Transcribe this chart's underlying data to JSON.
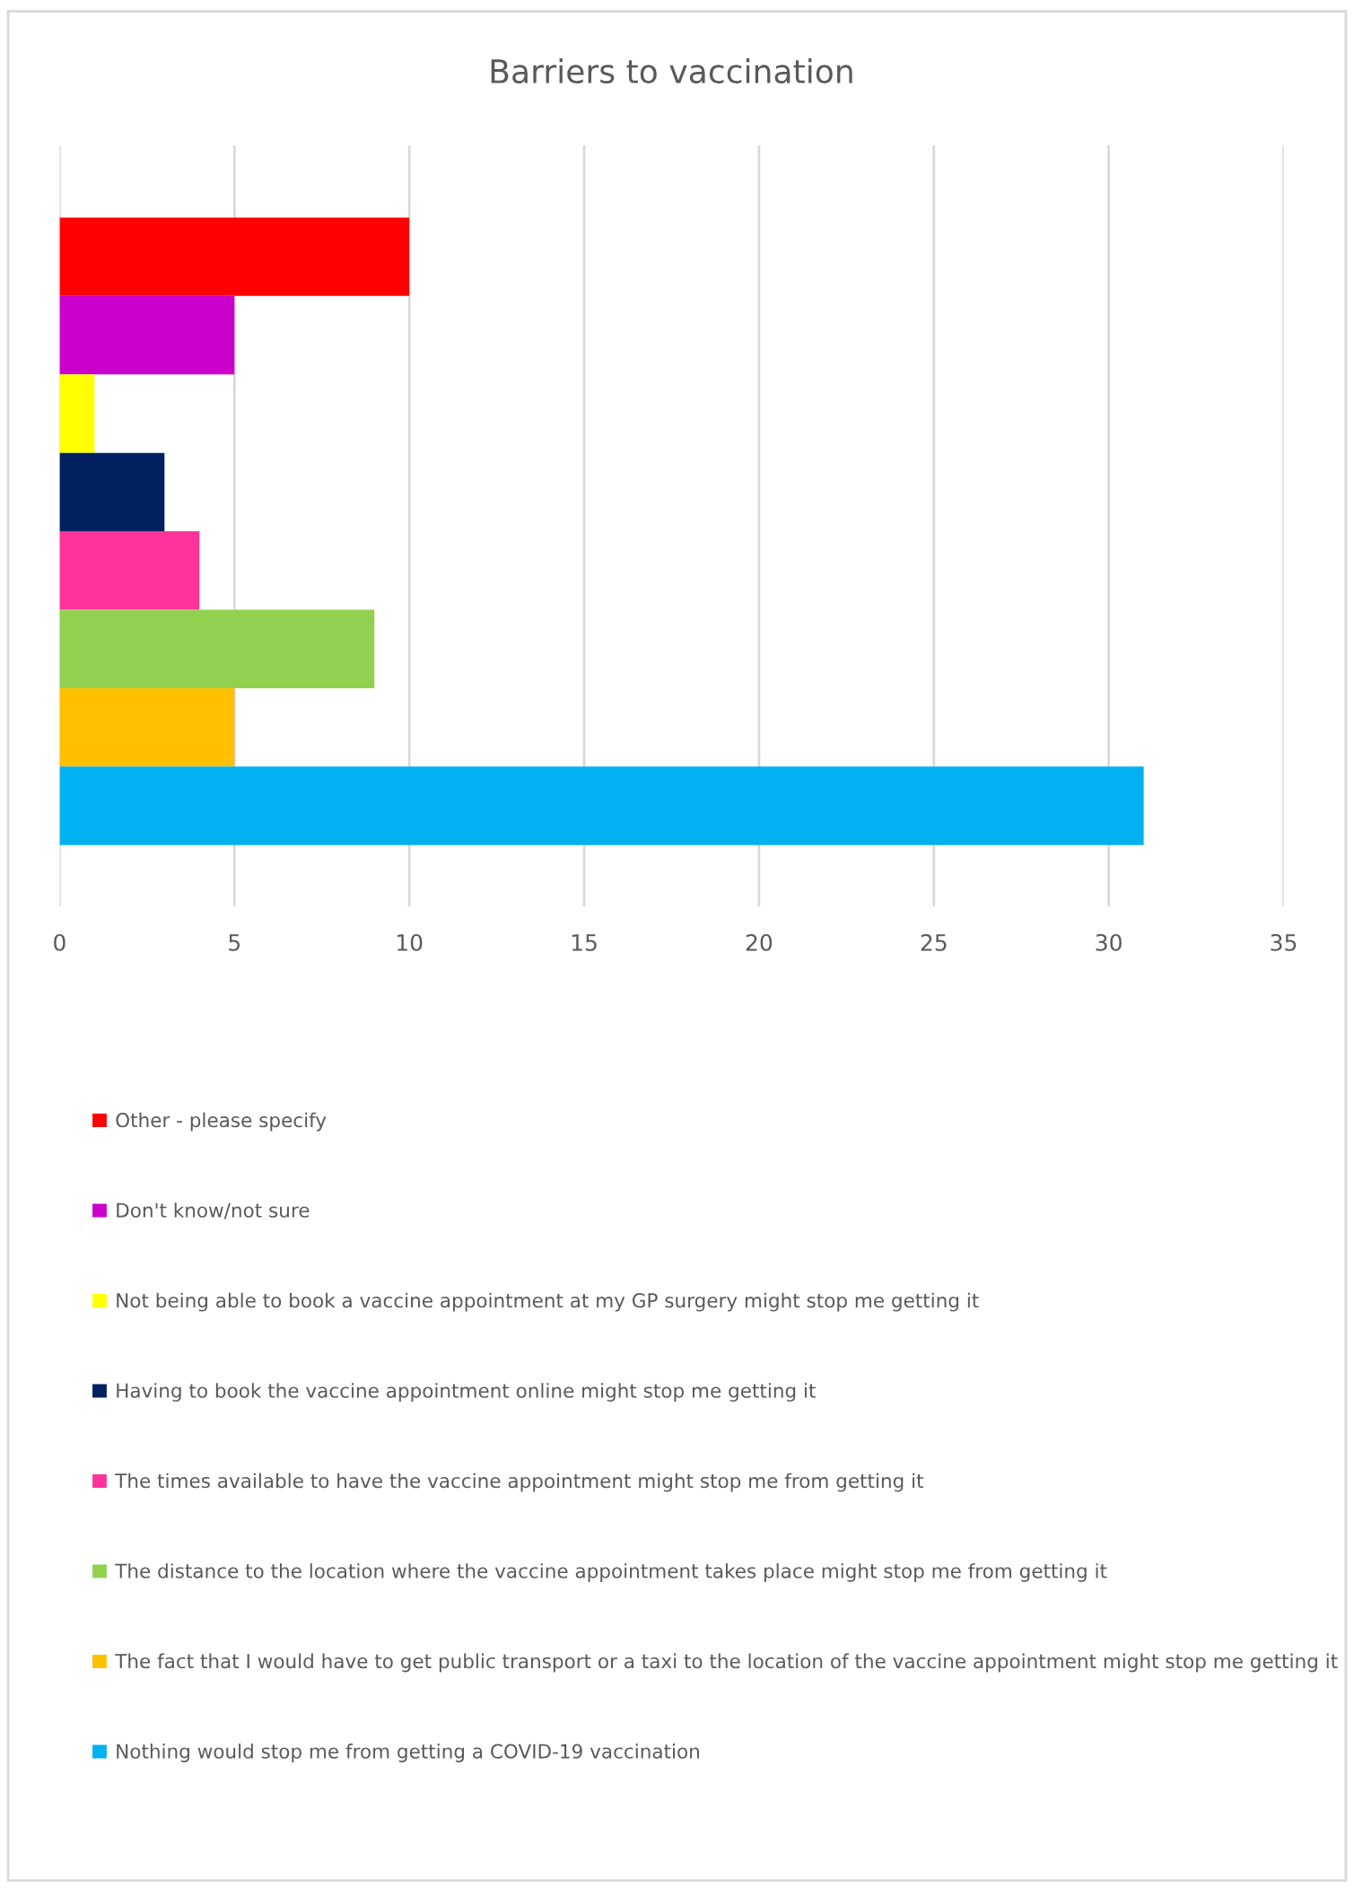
{
  "chart_data": {
    "type": "bar",
    "title": "Barriers to vaccination",
    "orientation": "horizontal",
    "categories": [
      null
    ],
    "series": [
      {
        "name": "Other - please specify",
        "color": "#ff0000",
        "values": [
          10
        ]
      },
      {
        "name": "Don't know/not sure",
        "color": "#cc00cc",
        "values": [
          5
        ]
      },
      {
        "name": "Not being able to book a vaccine appointment at my GP surgery might stop me getting it",
        "color": "#ffff00",
        "values": [
          1
        ]
      },
      {
        "name": "Having to book the vaccine appointment online might stop me getting it",
        "color": "#002060",
        "values": [
          3
        ]
      },
      {
        "name": "The times available to have the vaccine appointment might stop me from getting it",
        "color": "#ff3399",
        "values": [
          4
        ]
      },
      {
        "name": "The distance to the location where the vaccine appointment takes place might stop me from getting it",
        "color": "#92d050",
        "values": [
          9
        ]
      },
      {
        "name": "The fact that I would have to get public transport or a taxi to the location of the vaccine appointment might stop me getting it",
        "color": "#ffc000",
        "values": [
          5
        ]
      },
      {
        "name": "Nothing would stop me from getting a COVID-19 vaccination",
        "color": "#00b0f0",
        "values": [
          31
        ]
      }
    ],
    "xlim": [
      0,
      35
    ],
    "xticks": [
      0,
      5,
      10,
      15,
      20,
      25,
      30,
      35
    ],
    "grid": "x",
    "legend": "bottom"
  }
}
